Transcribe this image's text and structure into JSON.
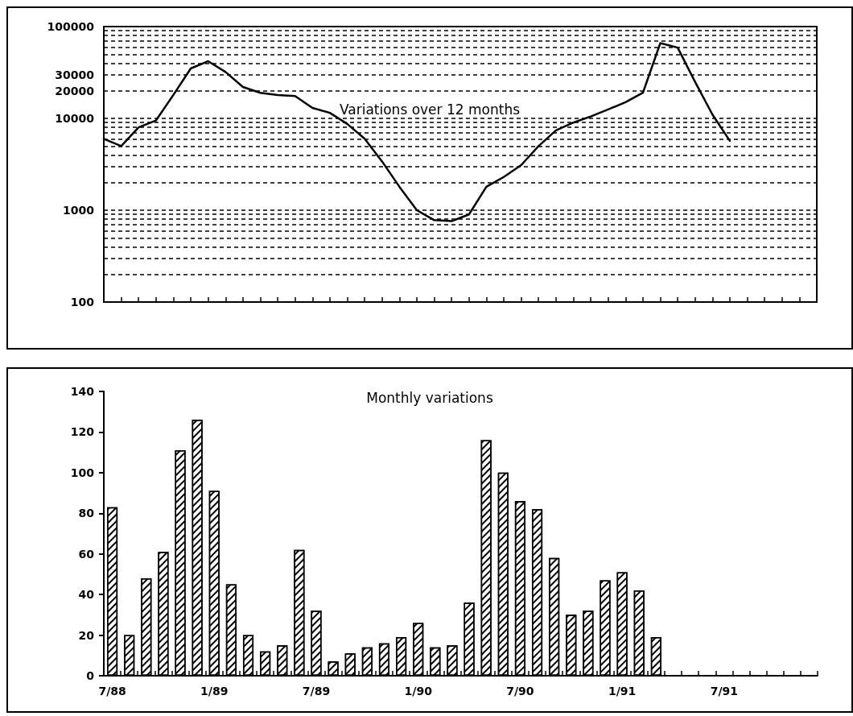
{
  "chart_data": [
    {
      "type": "line",
      "title": "Variations over 12 months",
      "categories": [
        null,
        null,
        null,
        null,
        null,
        null,
        null,
        null,
        null,
        null,
        null,
        null,
        null,
        null,
        null,
        null,
        null,
        null,
        null,
        null,
        null,
        null,
        null,
        null,
        null,
        null,
        null,
        null,
        null,
        null,
        null,
        null,
        null,
        null,
        null,
        null,
        null,
        null,
        null,
        null,
        null,
        null
      ],
      "values": [
        6000,
        5000,
        8000,
        9500,
        18000,
        35000,
        42000,
        32000,
        22000,
        19000,
        18000,
        17500,
        13000,
        11500,
        8700,
        6000,
        3400,
        1800,
        1000,
        780,
        760,
        900,
        1800,
        2300,
        3100,
        5000,
        7400,
        9000,
        10500,
        12500,
        15000,
        19000,
        66000,
        59000,
        25000,
        11000,
        5700,
        null,
        null,
        null,
        null,
        null
      ],
      "color": "#000000",
      "log": true,
      "ylim": [
        100,
        100000
      ],
      "yticks": [
        100,
        {
          "value": 200,
          "label": null
        },
        {
          "value": 300,
          "label": null
        },
        {
          "value": 400,
          "label": null
        },
        {
          "value": 500,
          "label": null
        },
        {
          "value": 600,
          "label": null
        },
        {
          "value": 700,
          "label": null
        },
        {
          "value": 800,
          "label": null
        },
        {
          "value": 900,
          "label": null
        },
        1000,
        {
          "value": 2000,
          "label": null
        },
        {
          "value": 3000,
          "label": null
        },
        {
          "value": 4000,
          "label": null
        },
        {
          "value": 5000,
          "label": null
        },
        {
          "value": 6000,
          "label": null
        },
        {
          "value": 7000,
          "label": null
        },
        {
          "value": 8000,
          "label": null
        },
        {
          "value": 9000,
          "label": null
        },
        10000,
        20000,
        30000,
        {
          "value": 40000,
          "label": null
        },
        {
          "value": 50000,
          "label": null
        },
        {
          "value": 60000,
          "label": null
        },
        {
          "value": 70000,
          "label": null
        },
        {
          "value": 80000,
          "label": null
        },
        {
          "value": 90000,
          "label": null
        },
        100000
      ],
      "grid": "y",
      "marker": "none",
      "line_style": "solid",
      "tick_labels": "y"
    },
    {
      "type": "bar",
      "title": "Monthly variations",
      "categories": [
        "7/88",
        null,
        null,
        null,
        null,
        null,
        "1/89",
        null,
        null,
        null,
        null,
        null,
        "7/89",
        null,
        null,
        null,
        null,
        null,
        "1/90",
        null,
        null,
        null,
        null,
        null,
        "7/90",
        null,
        null,
        null,
        null,
        null,
        "1/91",
        null,
        null,
        null,
        null,
        null,
        "7/91",
        null,
        null,
        null,
        null,
        null
      ],
      "values": [
        83,
        20,
        48,
        61,
        111,
        126,
        91,
        45,
        20,
        12,
        15,
        62,
        32,
        7,
        11,
        14,
        16,
        19,
        26,
        14,
        15,
        36,
        116,
        100,
        86,
        82,
        58,
        30,
        32,
        47,
        51,
        42,
        19,
        null,
        null,
        null,
        null,
        null,
        null,
        null,
        null,
        null
      ],
      "color": "#000000",
      "ylim": [
        0,
        140
      ],
      "yticks": [
        0,
        20,
        40,
        60,
        80,
        100,
        120,
        140
      ],
      "grid": false
    }
  ]
}
